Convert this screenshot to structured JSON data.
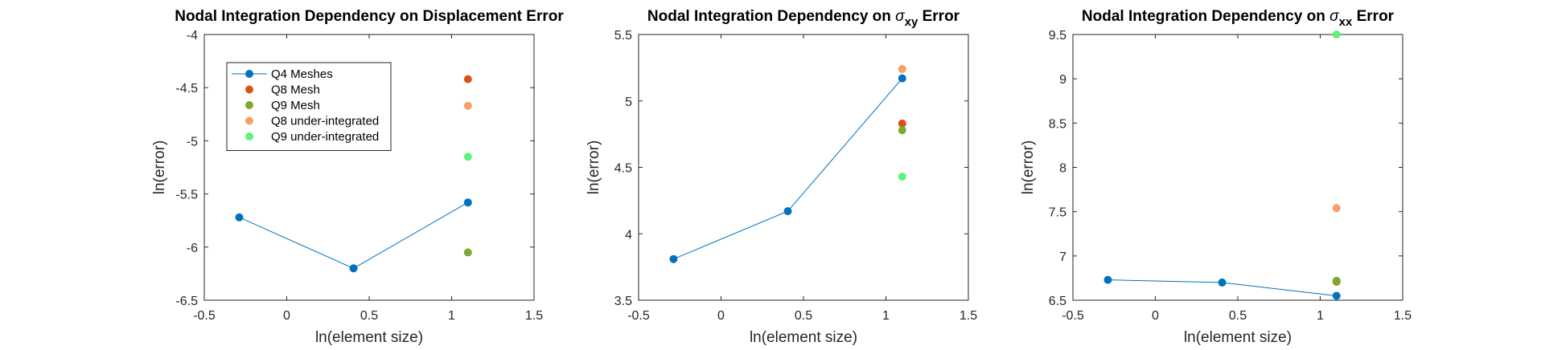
{
  "colors": {
    "q4": "#0072BD",
    "q8": "#D95319",
    "q9": "#77AC30",
    "q8u": "#F6A068",
    "q9u": "#5EF27A",
    "axis": "#262626"
  },
  "chart_data": [
    {
      "type": "scatter",
      "title_main": "Nodal Integration Dependency on Displacement Error",
      "title_sym": "",
      "title_sub": "",
      "title_tail": "",
      "xlabel": "ln(element size)",
      "ylabel": "ln(error)",
      "xlim": [
        -0.5,
        1.5
      ],
      "ylim": [
        -6.5,
        -4
      ],
      "xticks": [
        -0.5,
        0,
        0.5,
        1,
        1.5
      ],
      "xtick_labels": [
        "-0.5",
        "0",
        "0.5",
        "1",
        "1.5"
      ],
      "yticks": [
        -6.5,
        -6,
        -5.5,
        -5,
        -4.5,
        -4
      ],
      "ytick_labels": [
        "-6.5",
        "-6",
        "-5.5",
        "-5",
        "-4.5",
        "-4"
      ],
      "grid": false,
      "legend": "top-left",
      "series": [
        {
          "name": "Q4 Meshes",
          "color_key": "q4",
          "line": true,
          "points": [
            [
              -0.288,
              -5.72
            ],
            [
              0.405,
              -6.2
            ],
            [
              1.099,
              -5.58
            ]
          ]
        },
        {
          "name": "Q8 Mesh",
          "color_key": "q8",
          "line": false,
          "points": [
            [
              1.099,
              -4.42
            ]
          ]
        },
        {
          "name": "Q9 Mesh",
          "color_key": "q9",
          "line": false,
          "points": [
            [
              1.099,
              -6.05
            ]
          ]
        },
        {
          "name": "Q8 under-integrated",
          "color_key": "q8u",
          "line": false,
          "points": [
            [
              1.099,
              -4.67
            ]
          ]
        },
        {
          "name": "Q9 under-integrated",
          "color_key": "q9u",
          "line": false,
          "points": [
            [
              1.099,
              -5.15
            ]
          ]
        }
      ]
    },
    {
      "type": "scatter",
      "title_main": "Nodal Integration Dependency on ",
      "title_sym": "σ",
      "title_sub": "xy",
      "title_tail": " Error",
      "xlabel": "ln(element size)",
      "ylabel": "ln(error)",
      "xlim": [
        -0.5,
        1.5
      ],
      "ylim": [
        3.5,
        5.5
      ],
      "xticks": [
        -0.5,
        0,
        0.5,
        1,
        1.5
      ],
      "xtick_labels": [
        "-0.5",
        "0",
        "0.5",
        "1",
        "1.5"
      ],
      "yticks": [
        3.5,
        4,
        4.5,
        5,
        5.5
      ],
      "ytick_labels": [
        "3.5",
        "4",
        "4.5",
        "5",
        "5.5"
      ],
      "grid": false,
      "series": [
        {
          "color_key": "q4",
          "line": true,
          "points": [
            [
              -0.288,
              3.81
            ],
            [
              0.405,
              4.17
            ],
            [
              1.099,
              5.17
            ]
          ]
        },
        {
          "color_key": "q8",
          "line": false,
          "points": [
            [
              1.099,
              4.83
            ]
          ]
        },
        {
          "color_key": "q9",
          "line": false,
          "points": [
            [
              1.099,
              4.78
            ]
          ]
        },
        {
          "color_key": "q8u",
          "line": false,
          "points": [
            [
              1.099,
              5.24
            ]
          ]
        },
        {
          "color_key": "q9u",
          "line": false,
          "points": [
            [
              1.099,
              4.43
            ]
          ]
        }
      ]
    },
    {
      "type": "scatter",
      "title_main": "Nodal Integration Dependency on ",
      "title_sym": "σ",
      "title_sub": "xx",
      "title_tail": " Error",
      "xlabel": "ln(element size)",
      "ylabel": "ln(error)",
      "xlim": [
        -0.5,
        1.5
      ],
      "ylim": [
        6.5,
        9.5
      ],
      "xticks": [
        -0.5,
        0,
        0.5,
        1,
        1.5
      ],
      "xtick_labels": [
        "-0.5",
        "0",
        "0.5",
        "1",
        "1.5"
      ],
      "yticks": [
        6.5,
        7,
        7.5,
        8,
        8.5,
        9,
        9.5
      ],
      "ytick_labels": [
        "6.5",
        "7",
        "7.5",
        "8",
        "8.5",
        "9",
        "9.5"
      ],
      "grid": false,
      "series": [
        {
          "color_key": "q4",
          "line": true,
          "points": [
            [
              -0.288,
              6.73
            ],
            [
              0.405,
              6.7
            ],
            [
              1.099,
              6.55
            ]
          ]
        },
        {
          "color_key": "q8",
          "line": false,
          "points": [
            [
              1.099,
              6.71
            ]
          ]
        },
        {
          "color_key": "q9",
          "line": false,
          "points": [
            [
              1.099,
              6.72
            ]
          ]
        },
        {
          "color_key": "q8u",
          "line": false,
          "points": [
            [
              1.099,
              7.54
            ]
          ]
        },
        {
          "color_key": "q9u",
          "line": false,
          "points": [
            [
              1.099,
              9.5
            ]
          ]
        }
      ]
    }
  ]
}
